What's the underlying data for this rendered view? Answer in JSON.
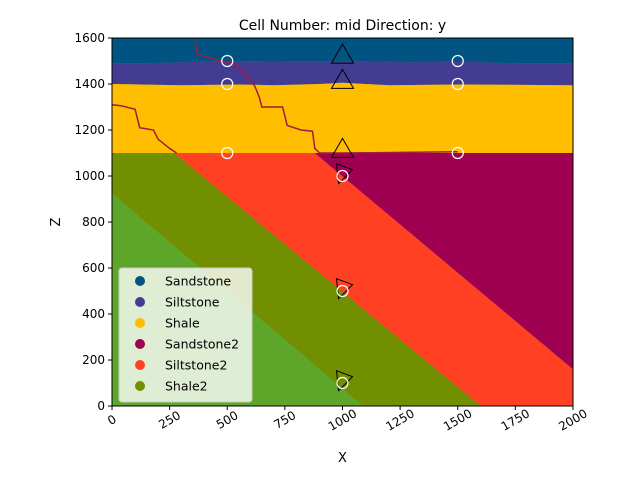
{
  "chart_data": {
    "type": "geological-section",
    "title": "Cell Number: mid Direction: y",
    "xlabel": "X",
    "ylabel": "Z",
    "xlim": [
      0,
      2000
    ],
    "ylim": [
      0,
      1600
    ],
    "xticks": [
      0,
      250,
      500,
      750,
      1000,
      1250,
      1500,
      1750,
      2000
    ],
    "yticks": [
      0,
      200,
      400,
      600,
      800,
      1000,
      1200,
      1400,
      1600
    ],
    "legend": {
      "placement": "lower-left",
      "entries": [
        {
          "name": "Sandstone",
          "color": "#015482"
        },
        {
          "name": "Siltstone",
          "color": "#433c92"
        },
        {
          "name": "Shale",
          "color": "#ffbe00"
        },
        {
          "name": "Sandstone2",
          "color": "#9f0052"
        },
        {
          "name": "Siltstone2",
          "color": "#ff4023"
        },
        {
          "name": "Shale2",
          "color": "#728f02"
        }
      ]
    },
    "basement_color": "#5da629",
    "fault_color": "#a01c40",
    "layers_top": [
      {
        "name": "Sandstone",
        "color": "#015482",
        "bottom": [
          [
            0,
            1490
          ],
          [
            150,
            1490
          ],
          [
            300,
            1495
          ],
          [
            500,
            1500
          ],
          [
            700,
            1498
          ],
          [
            1000,
            1500
          ],
          [
            1300,
            1495
          ],
          [
            1500,
            1498
          ],
          [
            1750,
            1490
          ],
          [
            2000,
            1490
          ]
        ]
      },
      {
        "name": "Siltstone",
        "color": "#433c92",
        "bottom": [
          [
            0,
            1400
          ],
          [
            300,
            1395
          ],
          [
            550,
            1398
          ],
          [
            700,
            1395
          ],
          [
            900,
            1400
          ],
          [
            1000,
            1405
          ],
          [
            1200,
            1395
          ],
          [
            1500,
            1398
          ],
          [
            2000,
            1395
          ]
        ]
      },
      {
        "name": "Shale",
        "color": "#ffbe00",
        "bottom": [
          [
            0,
            1100
          ],
          [
            2000,
            1100
          ]
        ]
      }
    ],
    "dipping_layers": [
      {
        "name": "Sandstone2",
        "color": "#9f0052",
        "top_line": [
          [
            1000,
            1100
          ],
          [
            2000,
            1100
          ]
        ],
        "base_line": [
          [
            880,
            1100
          ],
          [
            2000,
            160
          ]
        ]
      },
      {
        "name": "Siltstone2",
        "color": "#ff4023",
        "top_line": [
          [
            270,
            1100
          ],
          [
            880,
            1100
          ]
        ],
        "base_line": [
          [
            270,
            1100
          ],
          [
            1600,
            0
          ]
        ]
      },
      {
        "name": "Shale2",
        "color": "#728f02",
        "top_line": [
          [
            0,
            1100
          ],
          [
            270,
            1100
          ]
        ],
        "base_line": [
          [
            0,
            925
          ],
          [
            1090,
            0
          ]
        ]
      }
    ],
    "fault_trace": [
      [
        360,
        1590
      ],
      [
        370,
        1530
      ],
      [
        400,
        1520
      ],
      [
        450,
        1505
      ],
      [
        520,
        1490
      ],
      [
        560,
        1460
      ],
      [
        600,
        1420
      ],
      [
        620,
        1390
      ],
      [
        640,
        1340
      ],
      [
        650,
        1300
      ],
      [
        740,
        1300
      ],
      [
        760,
        1220
      ],
      [
        820,
        1200
      ],
      [
        870,
        1195
      ],
      [
        880,
        1120
      ],
      [
        900,
        1100
      ],
      [
        1000,
        1100
      ],
      [
        1500,
        1105
      ]
    ],
    "fault_trace_left": [
      [
        0,
        1310
      ],
      [
        40,
        1305
      ],
      [
        100,
        1290
      ],
      [
        120,
        1210
      ],
      [
        180,
        1200
      ],
      [
        200,
        1160
      ],
      [
        250,
        1120
      ],
      [
        280,
        1100
      ]
    ],
    "surface_points": [
      {
        "x": 500,
        "z": 1500
      },
      {
        "x": 1500,
        "z": 1500
      },
      {
        "x": 500,
        "z": 1400
      },
      {
        "x": 1500,
        "z": 1400
      },
      {
        "x": 500,
        "z": 1100
      },
      {
        "x": 1500,
        "z": 1100
      },
      {
        "x": 1000,
        "z": 1000
      },
      {
        "x": 1000,
        "z": 500
      },
      {
        "x": 1000,
        "z": 100
      }
    ],
    "orientations": [
      {
        "x": 1000,
        "z": 1530,
        "direction": "up"
      },
      {
        "x": 1000,
        "z": 1420,
        "direction": "up"
      },
      {
        "x": 1000,
        "z": 1120,
        "direction": "up"
      },
      {
        "x": 1000,
        "z": 1010,
        "direction": "right"
      },
      {
        "x": 1000,
        "z": 510,
        "direction": "right"
      },
      {
        "x": 1000,
        "z": 110,
        "direction": "right"
      }
    ]
  }
}
